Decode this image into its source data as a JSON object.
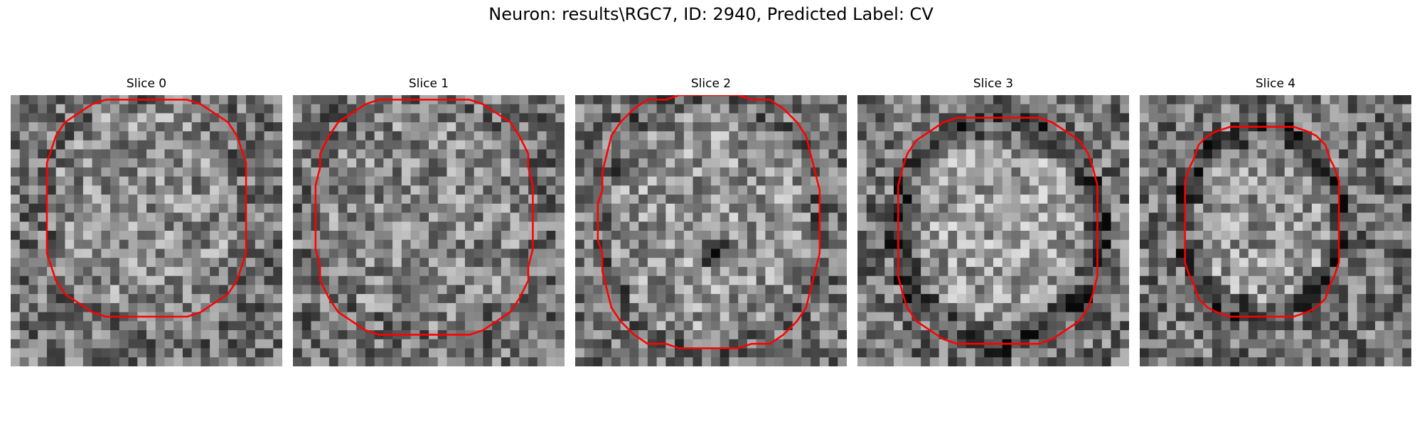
{
  "figure": {
    "title": "Neuron: results\\RGC7, ID: 2940, Predicted Label: CV"
  },
  "slices": [
    {
      "label": "Slice 0"
    },
    {
      "label": "Slice 1"
    },
    {
      "label": "Slice 2"
    },
    {
      "label": "Slice 3"
    },
    {
      "label": "Slice 4"
    }
  ],
  "colors": {
    "contour": "#ff0000",
    "background": "#ffffff"
  }
}
